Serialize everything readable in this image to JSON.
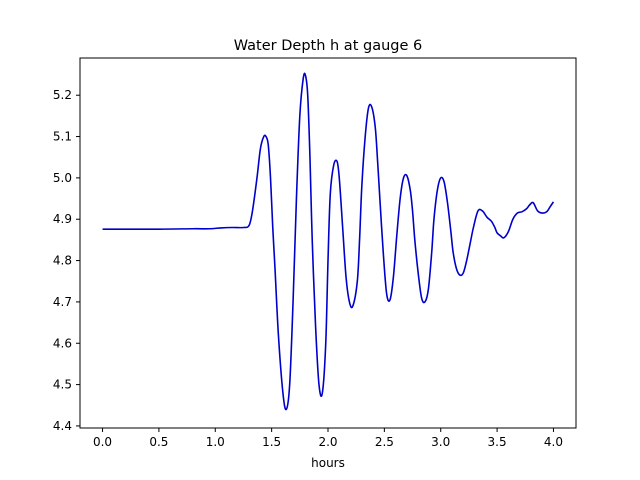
{
  "chart_data": {
    "type": "line",
    "title": "Water Depth h at gauge 6",
    "xlabel": "hours",
    "ylabel": "",
    "xlim": [
      -0.2,
      4.2
    ],
    "ylim": [
      4.395,
      5.29
    ],
    "xticks": [
      0.0,
      0.5,
      1.0,
      1.5,
      2.0,
      2.5,
      3.0,
      3.5,
      4.0
    ],
    "xtick_labels": [
      "0.0",
      "0.5",
      "1.0",
      "1.5",
      "2.0",
      "2.5",
      "3.0",
      "3.5",
      "4.0"
    ],
    "yticks": [
      4.4,
      4.5,
      4.6,
      4.7,
      4.8,
      4.9,
      5.0,
      5.1,
      5.2
    ],
    "ytick_labels": [
      "4.4",
      "4.5",
      "4.6",
      "4.7",
      "4.8",
      "4.9",
      "5.0",
      "5.1",
      "5.2"
    ],
    "grid": false,
    "series": [
      {
        "color": "#0000cc",
        "x": [
          0.0,
          0.5,
          0.8,
          0.95,
          1.05,
          1.15,
          1.25,
          1.3,
          1.33,
          1.37,
          1.4,
          1.43,
          1.45,
          1.47,
          1.49,
          1.51,
          1.53,
          1.56,
          1.6,
          1.63,
          1.66,
          1.69,
          1.72,
          1.75,
          1.78,
          1.8,
          1.82,
          1.84,
          1.86,
          1.89,
          1.92,
          1.95,
          1.98,
          2.0,
          2.02,
          2.05,
          2.08,
          2.1,
          2.13,
          2.16,
          2.19,
          2.22,
          2.26,
          2.28,
          2.3,
          2.33,
          2.36,
          2.39,
          2.42,
          2.44,
          2.46,
          2.49,
          2.52,
          2.55,
          2.58,
          2.61,
          2.64,
          2.67,
          2.7,
          2.73,
          2.75,
          2.77,
          2.8,
          2.83,
          2.86,
          2.89,
          2.92,
          2.94,
          2.97,
          3.0,
          3.03,
          3.06,
          3.09,
          3.11,
          3.14,
          3.17,
          3.2,
          3.23,
          3.26,
          3.29,
          3.33,
          3.37,
          3.41,
          3.45,
          3.48,
          3.5,
          3.53,
          3.56,
          3.6,
          3.64,
          3.68,
          3.72,
          3.76,
          3.79,
          3.82,
          3.86,
          3.9,
          3.94,
          3.97,
          4.0
        ],
        "y": [
          4.876,
          4.876,
          4.877,
          4.877,
          4.879,
          4.88,
          4.88,
          4.885,
          4.92,
          5.0,
          5.07,
          5.1,
          5.1,
          5.08,
          5.0,
          4.88,
          4.78,
          4.62,
          4.48,
          4.44,
          4.5,
          4.7,
          4.95,
          5.15,
          5.24,
          5.248,
          5.2,
          5.05,
          4.85,
          4.64,
          4.5,
          4.48,
          4.6,
          4.8,
          4.96,
          5.03,
          5.04,
          5.0,
          4.88,
          4.76,
          4.7,
          4.69,
          4.75,
          4.85,
          4.98,
          5.1,
          5.17,
          5.17,
          5.12,
          5.04,
          4.95,
          4.82,
          4.72,
          4.705,
          4.76,
          4.86,
          4.95,
          5.0,
          5.005,
          4.97,
          4.92,
          4.85,
          4.77,
          4.71,
          4.7,
          4.73,
          4.82,
          4.9,
          4.97,
          5.0,
          4.99,
          4.94,
          4.87,
          4.82,
          4.78,
          4.765,
          4.77,
          4.8,
          4.84,
          4.88,
          4.92,
          4.92,
          4.905,
          4.895,
          4.88,
          4.867,
          4.86,
          4.855,
          4.87,
          4.9,
          4.915,
          4.918,
          4.925,
          4.935,
          4.94,
          4.92,
          4.915,
          4.918,
          4.93,
          4.942
        ]
      }
    ]
  }
}
